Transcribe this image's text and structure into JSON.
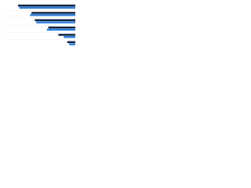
{
  "chart_data": {
    "type": "hbar",
    "categories": [
      null,
      null,
      null,
      null,
      null,
      null
    ],
    "series": [
      {
        "color": "#0f2545",
        "values": [
          85,
          65,
          60,
          40,
          25,
          12
        ]
      },
      {
        "color": "#2f7ed8",
        "values": [
          83,
          67,
          58,
          42,
          17,
          9
        ]
      }
    ],
    "xlim": [
      0,
      100
    ],
    "x_reversed": true
  }
}
